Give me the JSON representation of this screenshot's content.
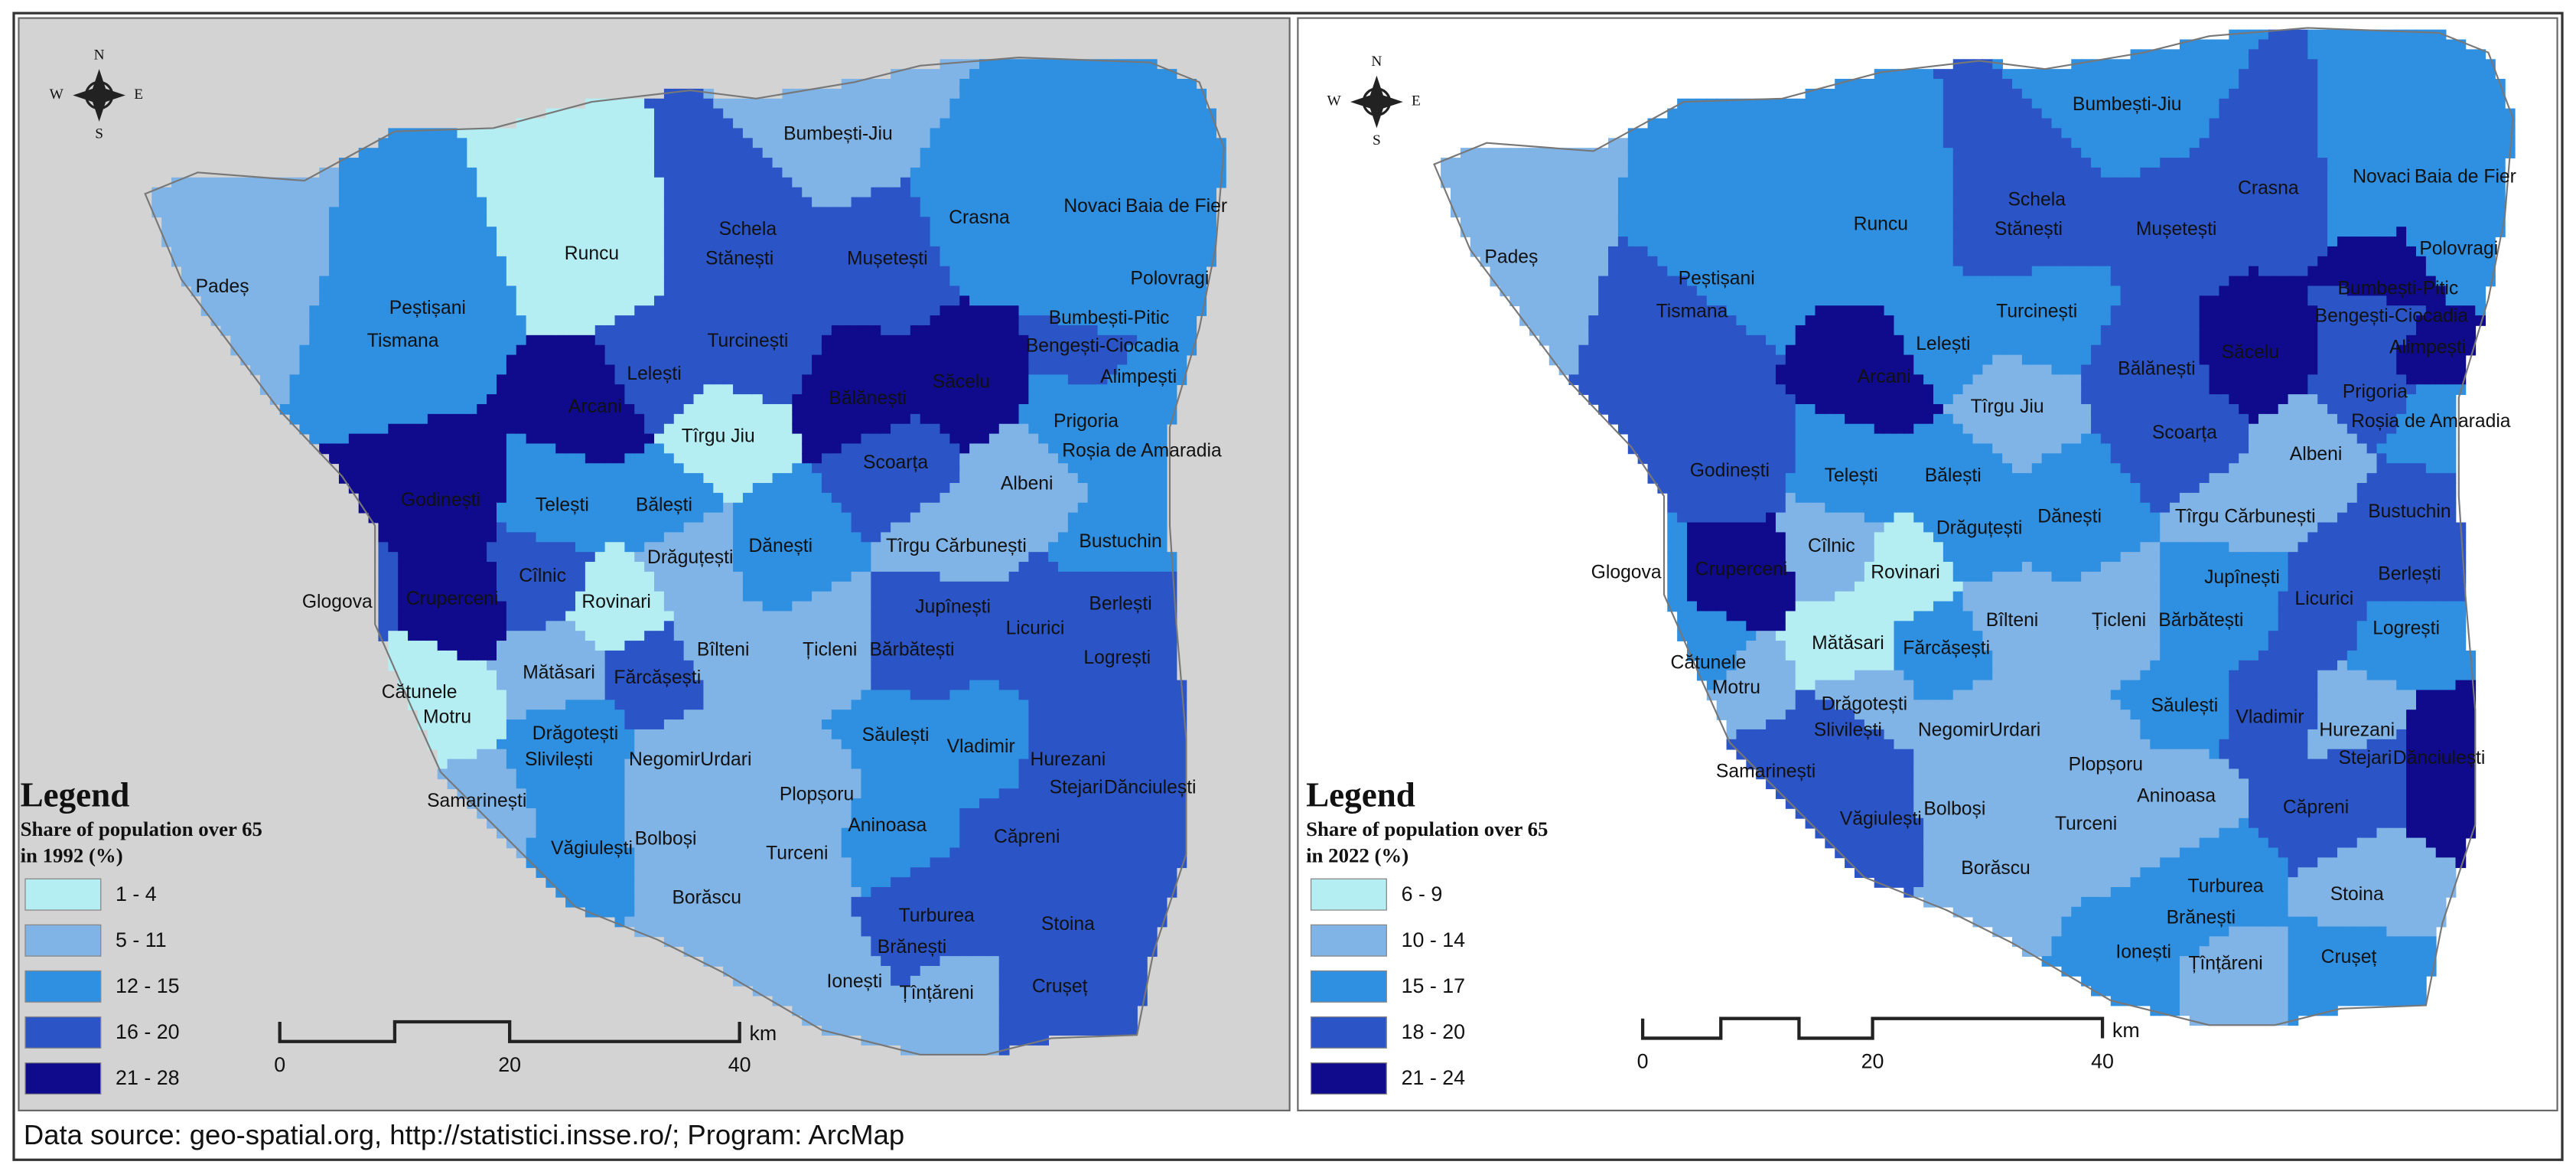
{
  "compass": {
    "north": "N",
    "south": "S",
    "east": "E",
    "west": "W"
  },
  "maps": [
    {
      "legend": {
        "title": "Legend",
        "subtitle_lines": [
          "Share of population over 65",
          " in 1992 (%)"
        ],
        "classes": [
          "1 - 4",
          "5 - 11",
          "12 - 15",
          "16 - 20",
          "21 - 28"
        ]
      },
      "scale": {
        "labels": [
          "0",
          "20",
          "40"
        ],
        "unit": "km"
      },
      "places": [
        "Padeș",
        "Tismana",
        "Peștișani",
        "Runcu",
        "Schela",
        "Stănești",
        "Turcinești",
        "Lelești",
        "Arcani",
        "Tîrgu Jiu",
        "Bumbești-Jiu",
        "Crasna",
        "Mușetești",
        "Novaci",
        "Baia de Fier",
        "Polovragi",
        "Bumbești-Pitic",
        "Bengești-Ciocadia",
        "Alimpești",
        "Bălănești",
        "Săcelu",
        "Prigoria",
        "Roșia de Amaradia",
        "Scoarța",
        "Albeni",
        "Godinești",
        "Telești",
        "Bălești",
        "Drăguțești",
        "Dănești",
        "Tîrgu Cărbunești",
        "Bustuchin",
        "Glogova",
        "Cruperceni",
        "Cîlnic",
        "Rovinari",
        "Bîlteni",
        "Țicleni",
        "Jupînești",
        "Berlești",
        "Licurici",
        "Bărbătești",
        "Logrești",
        "Fărcășești",
        "Mătăsari",
        "Cătunele",
        "Motru",
        "Drăgotești",
        "Slivilești",
        "NegomirUrdari",
        "Săulești",
        "Vladimir",
        "Hurezani",
        "Stejari",
        "Dănciulești",
        "Samarinești",
        "Plopșoru",
        "Bolboși",
        "Văgiulești",
        "Aninoasa",
        "Turceni",
        "Căpreni",
        "Borăscu",
        "Turburea",
        "Stoina",
        "Brănești",
        "Ionești",
        "Crușeț",
        "Țînțăreni"
      ]
    },
    {
      "legend": {
        "title": "Legend",
        "subtitle_lines": [
          "Share of population over 65",
          "in 2022 (%)"
        ],
        "classes": [
          "6 - 9",
          "10 - 14",
          "15 - 17",
          "18 - 20",
          "21 - 24"
        ]
      },
      "scale": {
        "labels": [
          "0",
          "20",
          "40"
        ],
        "unit": "km"
      },
      "places": [
        "Padeș",
        "Tismana",
        "Peștișani",
        "Runcu",
        "Schela",
        "Stănești",
        "Turcinești",
        "Lelești",
        "Arcani",
        "Tîrgu Jiu",
        "Bumbești-Jiu",
        "Crasna",
        "Mușetești",
        "Novaci",
        "Baia de Fier",
        "Polovragi",
        "Bumbești-Pitic",
        "Bengești-Ciocadia",
        "Alimpești",
        "Bălănești",
        "Săcelu",
        "Prigoria",
        "Roșia de Amaradia",
        "Scoarța",
        "Albeni",
        "Godinești",
        "Telești",
        "Bălești",
        "Drăguțești",
        "Dănești",
        "Tîrgu Cărbunești",
        "Bustuchin",
        "Glogova",
        "Cruperceni",
        "Cîlnic",
        "Rovinari",
        "Bîlteni",
        "Țicleni",
        "Jupînești",
        "Berlești",
        "Licurici",
        "Bărbătești",
        "Logrești",
        "Fărcășești",
        "Mătăsari",
        "Cătunele",
        "Motru",
        "Drăgotești",
        "Slivilești",
        "NegomirUrdari",
        "Săulești",
        "Vladimir",
        "Hurezani",
        "Stejari",
        "Dănciulești",
        "Samarinești",
        "Plopșoru",
        "Bolboși",
        "Văgiulești",
        "Aninoasa",
        "Turceni",
        "Căpreni",
        "Borăscu",
        "Turburea",
        "Stoina",
        "Brănești",
        "Ionești",
        "Crușeț",
        "Țînțăreni"
      ]
    }
  ],
  "source": "Data source: geo-spatial.org, http://statistici.insse.ro/; Program: ArcMap"
}
